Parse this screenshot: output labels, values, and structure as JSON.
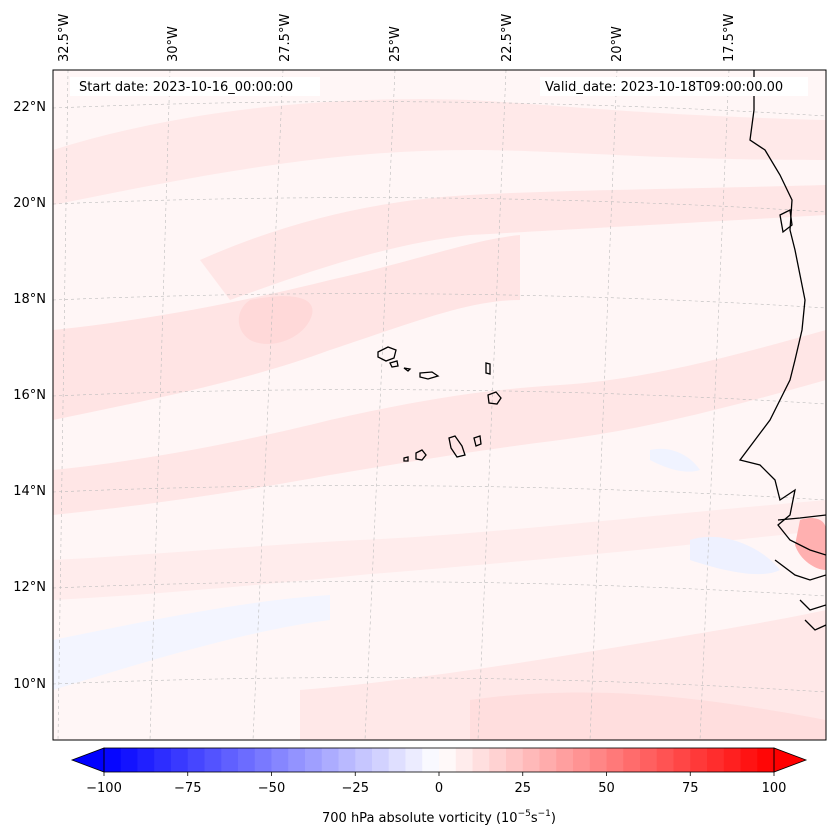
{
  "header": {
    "start_date": "Start date: 2023-10-16_00:00:00",
    "valid_date": "Valid_date: 2023-10-18T09:00:00.00"
  },
  "lon_labels": [
    "32.5°W",
    "30°W",
    "27.5°W",
    "25°W",
    "22.5°W",
    "20°W",
    "17.5°W"
  ],
  "lat_labels": [
    "22°N",
    "20°N",
    "18°N",
    "16°N",
    "14°N",
    "12°N",
    "10°N"
  ],
  "colorbar": {
    "min": -100,
    "max": 100,
    "tick_labels": [
      "−100",
      "−75",
      "−50",
      "−25",
      "0",
      "25",
      "50",
      "75",
      "100"
    ],
    "label": "700 hPa absolute vorticity (10",
    "label_exp1": "−5",
    "label_mid": "s",
    "label_exp2": "−1",
    "label_end": ")",
    "colors": {
      "low": "#0000ff",
      "mid": "#ffffff",
      "high": "#ff0000"
    }
  },
  "map_colors": {
    "background": "#fff6f6",
    "weak_positive": "#ffe6e6",
    "moderate_positive": "#ffd5d5",
    "weak_negative": "#f2f4ff",
    "coastline": "#000000",
    "gridline": "#bbbbbb"
  }
}
